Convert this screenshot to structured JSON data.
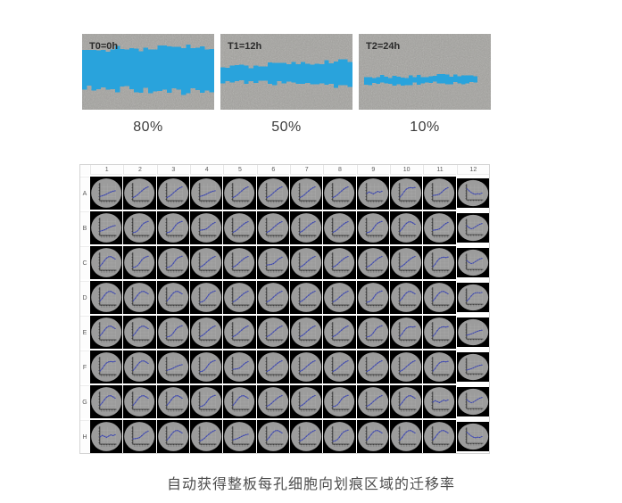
{
  "hero": {
    "panels": [
      {
        "label": "T0=0h",
        "percent": "80%",
        "band": {
          "start": 0.0,
          "end": 1.0,
          "topStart": 0.21,
          "topEnd": 0.17,
          "botStart": 0.72,
          "botEnd": 0.77,
          "amp": 0.1,
          "seed": 11
        }
      },
      {
        "label": "T1=12h",
        "percent": "50%",
        "band": {
          "start": 0.0,
          "end": 1.0,
          "topStart": 0.44,
          "topEnd": 0.36,
          "botStart": 0.62,
          "botEnd": 0.7,
          "amp": 0.07,
          "seed": 22
        }
      },
      {
        "label": "T2=24h",
        "percent": "10%",
        "band": {
          "start": 0.04,
          "end": 0.9,
          "topStart": 0.57,
          "topEnd": 0.54,
          "botStart": 0.67,
          "botEnd": 0.64,
          "amp": 0.05,
          "seed": 33
        }
      }
    ]
  },
  "plate": {
    "columns": [
      "1",
      "2",
      "3",
      "4",
      "5",
      "6",
      "7",
      "8",
      "9",
      "10",
      "11",
      "12"
    ],
    "rows": [
      "A",
      "B",
      "C",
      "D",
      "E",
      "F",
      "G",
      "H"
    ],
    "patterns": {
      "rise1": [
        0.22,
        0.26,
        0.31,
        0.37,
        0.44,
        0.5,
        0.55,
        0.58
      ],
      "rise2": [
        0.15,
        0.22,
        0.32,
        0.45,
        0.57,
        0.68,
        0.77,
        0.83
      ],
      "scurve": [
        0.13,
        0.16,
        0.24,
        0.4,
        0.6,
        0.73,
        0.8,
        0.84
      ],
      "hump": [
        0.22,
        0.38,
        0.57,
        0.72,
        0.81,
        0.82,
        0.75,
        0.66
      ],
      "plateau": [
        0.18,
        0.34,
        0.54,
        0.69,
        0.76,
        0.78,
        0.76,
        0.79
      ],
      "flatrise": [
        0.28,
        0.3,
        0.32,
        0.37,
        0.48,
        0.61,
        0.71,
        0.78
      ],
      "wave": [
        0.42,
        0.5,
        0.44,
        0.38,
        0.46,
        0.54,
        0.49,
        0.55
      ],
      "fall": [
        0.74,
        0.6,
        0.47,
        0.39,
        0.35,
        0.39,
        0.37,
        0.43
      ],
      "diprise": [
        0.58,
        0.44,
        0.37,
        0.41,
        0.51,
        0.61,
        0.69,
        0.74
      ]
    },
    "wells": [
      [
        "rise1",
        "rise2",
        "rise2",
        "rise1",
        "rise2",
        "rise2",
        "rise2",
        "rise2",
        "wave",
        "plateau",
        "flatrise",
        "fall"
      ],
      [
        "rise1",
        "scurve",
        "scurve",
        "flatrise",
        "rise2",
        "rise2",
        "rise2",
        "rise2",
        "scurve",
        "hump",
        "flatrise",
        "diprise"
      ],
      [
        "hump",
        "scurve",
        "scurve",
        "rise2",
        "rise2",
        "flatrise",
        "rise2",
        "rise2",
        "rise2",
        "rise2",
        "plateau",
        "diprise"
      ],
      [
        "hump",
        "hump",
        "hump",
        "scurve",
        "rise2",
        "rise2",
        "rise2",
        "rise2",
        "scurve",
        "hump",
        "hump",
        "plateau"
      ],
      [
        "hump",
        "hump",
        "scurve",
        "rise2",
        "rise2",
        "rise2",
        "rise2",
        "rise2",
        "scurve",
        "plateau",
        "plateau",
        "rise1"
      ],
      [
        "plateau",
        "hump",
        "rise1",
        "scurve",
        "flatrise",
        "rise2",
        "rise2",
        "rise2",
        "rise2",
        "rise2",
        "plateau",
        "rise1"
      ],
      [
        "hump",
        "hump",
        "hump",
        "scurve",
        "hump",
        "rise2",
        "rise2",
        "scurve",
        "rise2",
        "hump",
        "wave",
        "diprise"
      ],
      [
        "wave",
        "flatrise",
        "hump",
        "rise2",
        "rise1",
        "hump",
        "rise2",
        "scurve",
        "hump",
        "hump",
        "hump",
        "fall"
      ]
    ]
  },
  "caption": "自动获得整板每孔细胞向划痕区域的迁移率",
  "colors": {
    "scratch_overlay": "#29a3dc",
    "micrograph_gray": "#a3a29e",
    "well_circle": "#9c9c9c",
    "well_line": "#4c55b8",
    "well_marker": "#3d47a8",
    "well_axes": "#2e2e2e",
    "cell_bg": "#000000"
  }
}
